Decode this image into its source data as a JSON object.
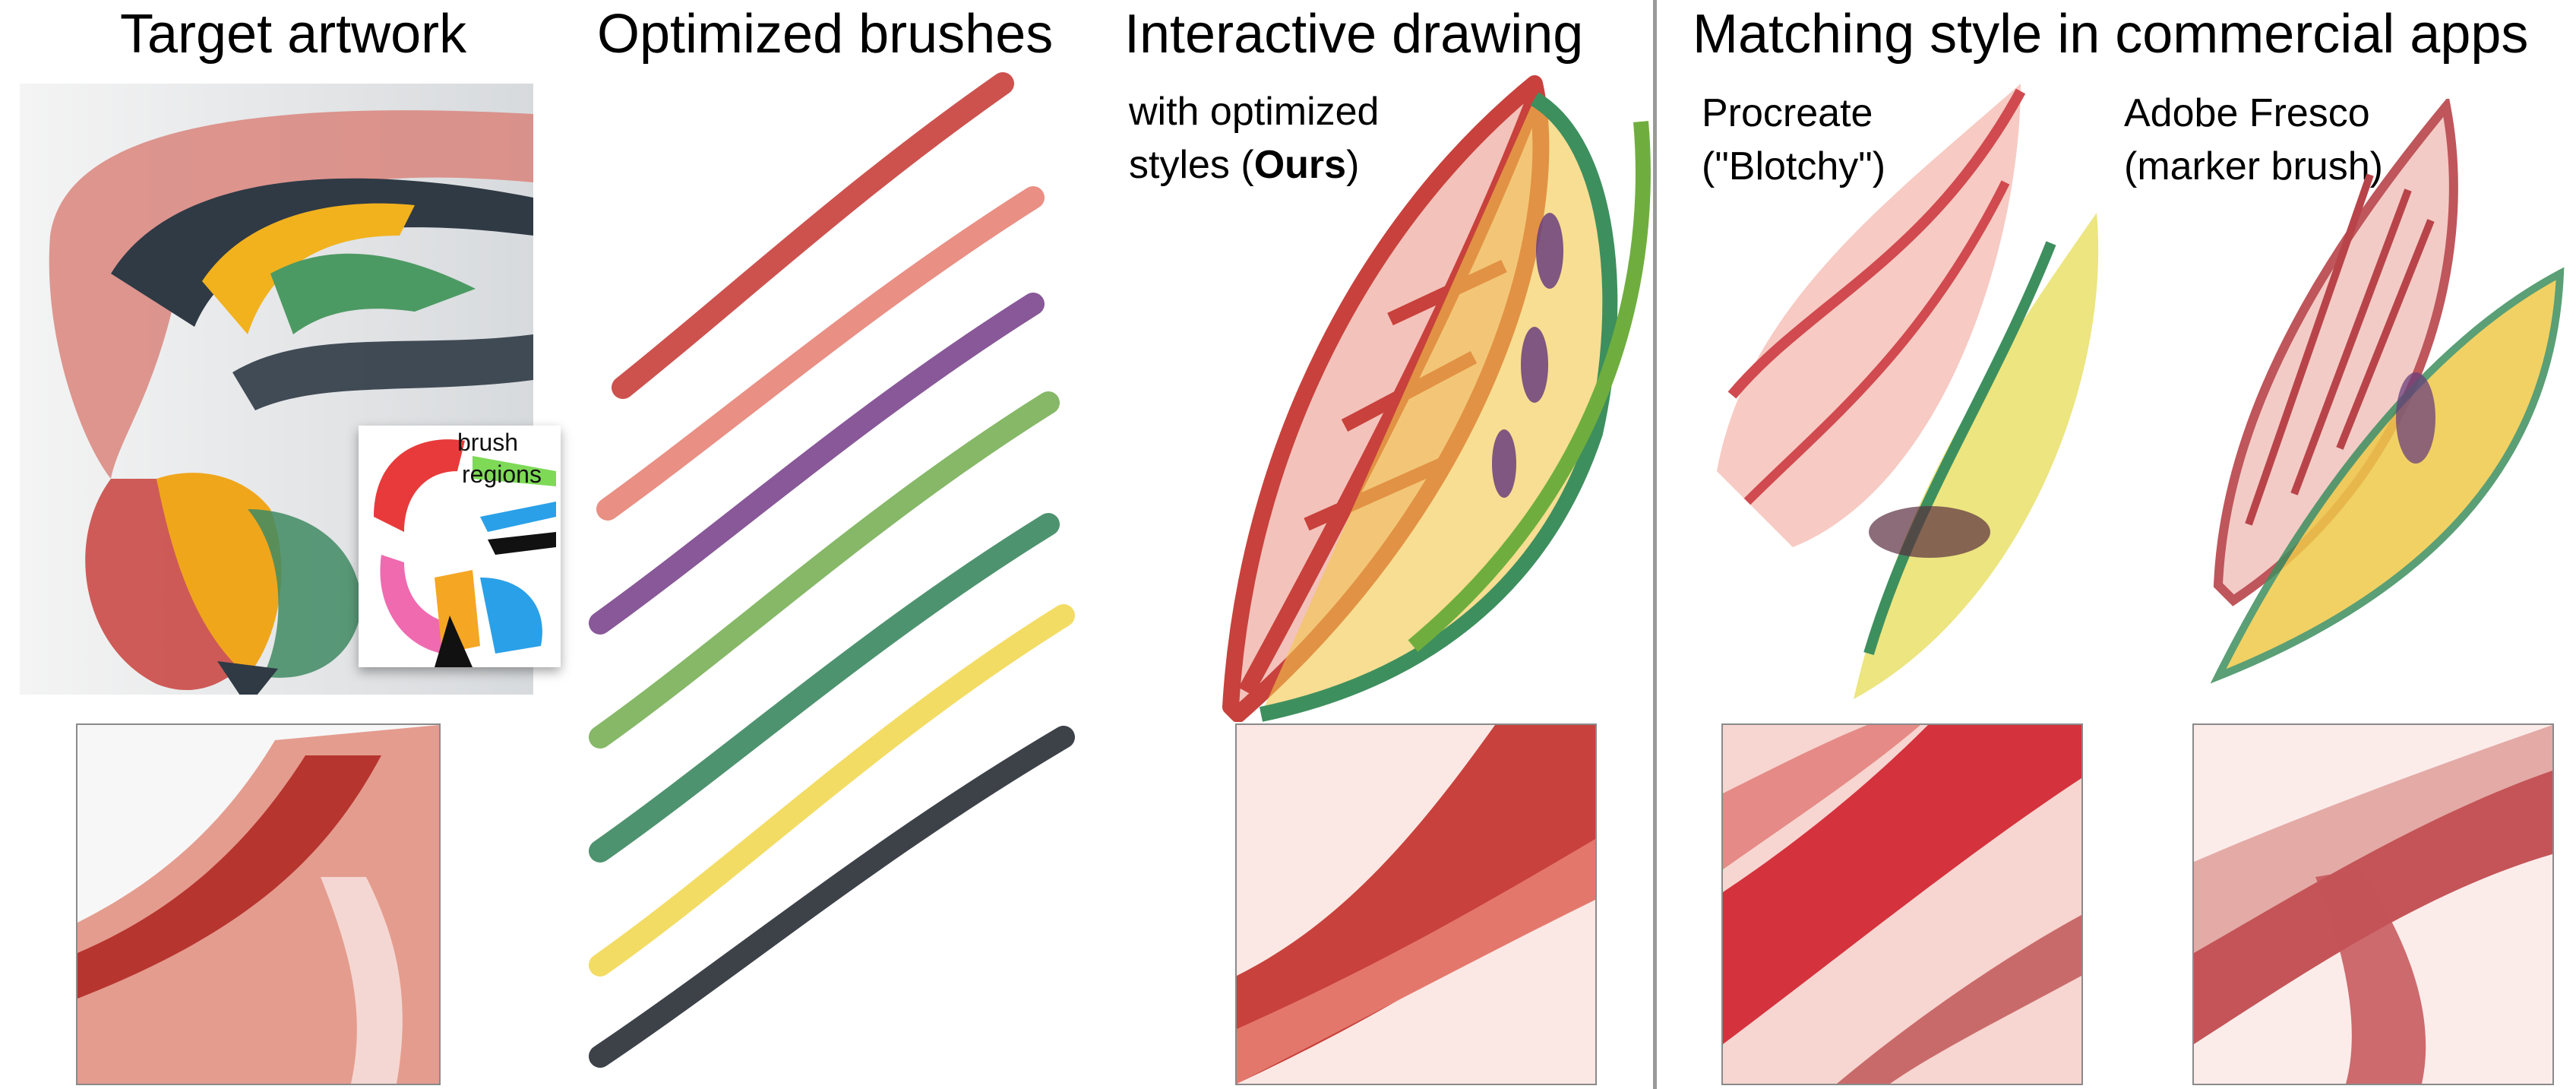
{
  "columns": {
    "target": {
      "title": "Target artwork"
    },
    "brushes": {
      "title": "Optimized brushes"
    },
    "interactive": {
      "title": "Interactive drawing",
      "caption_line1": "with optimized",
      "caption_line2_prefix": "styles (",
      "caption_line2_bold": "Ours",
      "caption_line2_suffix": ")"
    },
    "commercial": {
      "title": "Matching style in commercial apps"
    }
  },
  "inset": {
    "label_line1": "brush",
    "label_line2": "regions"
  },
  "apps": [
    {
      "name": "Procreate",
      "detail": "(\"Blotchy\")"
    },
    {
      "name": "Adobe Fresco",
      "detail": "(marker brush)"
    }
  ],
  "brush_colors": [
    "#c9433f",
    "#e7857a",
    "#7e4a8f",
    "#7cb25a",
    "#3f8a63",
    "#f2d957",
    "#2c323a"
  ],
  "accent_colors": {
    "red": "#c8413c",
    "pink": "#ef9c91",
    "green": "#3e8f5e",
    "yellow": "#f3c84a",
    "purple": "#6a3f7c",
    "navy": "#2c3440"
  }
}
